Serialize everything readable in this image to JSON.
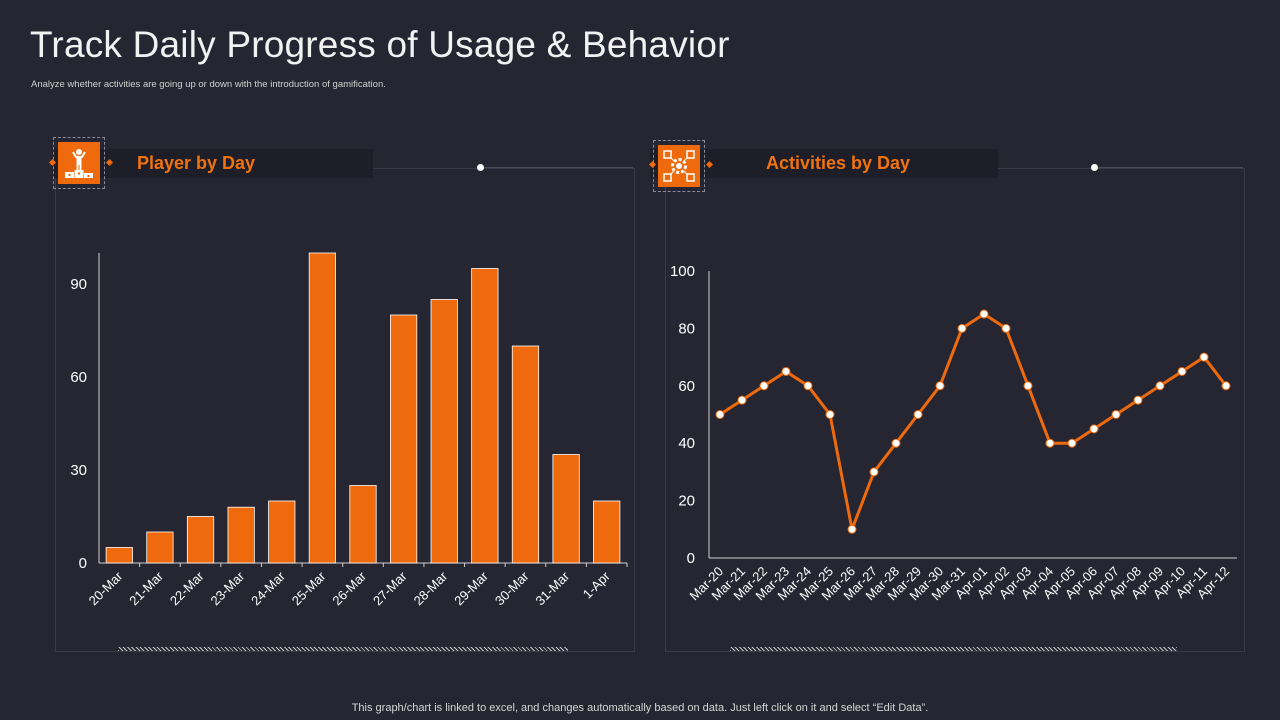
{
  "page": {
    "title": "Track Daily Progress of Usage & Behavior",
    "subtitle": "Analyze whether activities are going up or down with the introduction of gamification.",
    "footer": "This graph/chart is linked to excel, and changes automatically based on data. Just left click on it and select “Edit Data”."
  },
  "panels": {
    "left": {
      "title": "Player by Day",
      "icon": "podium-winner-icon"
    },
    "right": {
      "title": "Activities by Day",
      "icon": "gear-activities-icon"
    }
  },
  "colors": {
    "accent": "#ee6a0c",
    "background": "#262633",
    "text": "#ffffff"
  },
  "chart_data": [
    {
      "type": "bar",
      "title": "Player by Day",
      "categories": [
        "20-Mar",
        "21-Mar",
        "22-Mar",
        "23-Mar",
        "24-Mar",
        "25-Mar",
        "26-Mar",
        "27-Mar",
        "28-Mar",
        "29-Mar",
        "30-Mar",
        "31-Mar",
        "1-Apr"
      ],
      "values": [
        5,
        10,
        15,
        18,
        20,
        100,
        25,
        80,
        85,
        95,
        70,
        35,
        20
      ],
      "yticks": [
        0,
        30,
        60,
        90
      ],
      "ylim": [
        0,
        100
      ],
      "xlabel": "",
      "ylabel": ""
    },
    {
      "type": "line",
      "title": "Activities by Day",
      "categories": [
        "Mar-20",
        "Mar-21",
        "Mar-22",
        "Mar-23",
        "Mar-24",
        "Mar-25",
        "Mar-26",
        "Mar-27",
        "Mar-28",
        "Mar-29",
        "Mar-30",
        "Mar-31",
        "Apr-01",
        "Apr-02",
        "Apr-03",
        "Apr-04",
        "Apr-05",
        "Apr-06",
        "Apr-07",
        "Apr-08",
        "Apr-09",
        "Apr-10",
        "Apr-11",
        "Apr-12"
      ],
      "values": [
        50,
        55,
        60,
        65,
        60,
        50,
        10,
        30,
        40,
        50,
        60,
        80,
        85,
        80,
        60,
        40,
        40,
        45,
        50,
        55,
        60,
        65,
        70,
        60
      ],
      "yticks": [
        0,
        20,
        40,
        60,
        80,
        100
      ],
      "ylim": [
        0,
        100
      ],
      "xlabel": "",
      "ylabel": ""
    }
  ]
}
